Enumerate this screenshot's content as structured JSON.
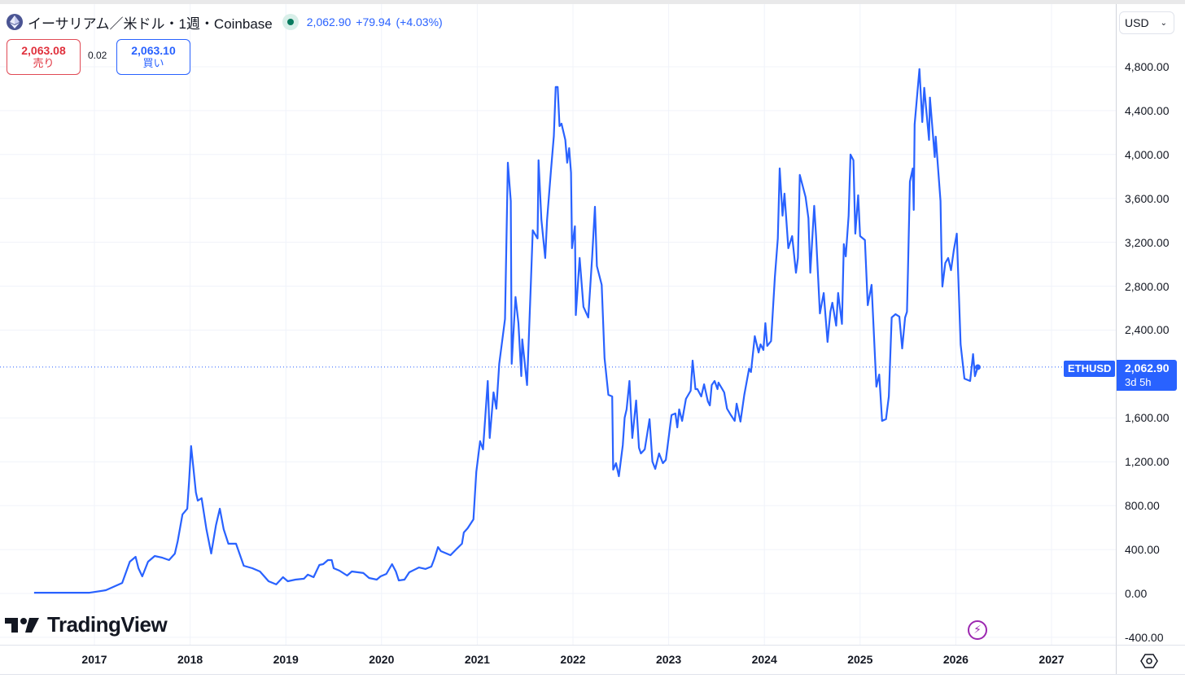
{
  "header": {
    "title": "イーサリアム／米ドル・1週・Coinbase",
    "last_price": "2,062.90",
    "change": "+79.94",
    "change_pct": "(+4.03%)",
    "sell_price": "2,063.08",
    "sell_label": "売り",
    "spread": "0.02",
    "buy_price": "2,063.10",
    "buy_label": "買い",
    "icons": {
      "symbol": "ethereum-icon",
      "status": "market-open-dot-icon"
    }
  },
  "currency_select": {
    "value": "USD"
  },
  "price_tag": {
    "symbol": "ETHUSD",
    "value": "2,062.90",
    "countdown": "3d 5h"
  },
  "logo": {
    "text": "TradingView"
  },
  "colors": {
    "line": "#2962ff",
    "sell": "#e0303c",
    "buy": "#2962ff",
    "accent_purple": "#9c27b0",
    "live_dot": "#087a5e"
  },
  "chart_data": {
    "type": "line",
    "title": "イーサリアム／米ドル・1週・Coinbase",
    "xlabel": "",
    "ylabel": "USD",
    "series": [
      {
        "name": "ETHUSD",
        "color": "#2962ff"
      }
    ],
    "x_ticks": [
      "2017",
      "2018",
      "2019",
      "2020",
      "2021",
      "2022",
      "2023",
      "2024",
      "2025",
      "2026",
      "2027"
    ],
    "y_ticks": [
      "4,800.00",
      "4,400.00",
      "4,000.00",
      "3,600.00",
      "3,200.00",
      "2,800.00",
      "2,400.00",
      "1,600.00",
      "1,200.00",
      "800.00",
      "400.00",
      "0.00",
      "-400.00"
    ],
    "y_tick_values": [
      4800,
      4400,
      4000,
      3600,
      3200,
      2800,
      2400,
      1600,
      1200,
      800,
      400,
      0,
      -400
    ],
    "ylim": [
      -450,
      5150
    ],
    "xlim": [
      2016.05,
      2027.66
    ],
    "grid": true,
    "legend_position": "none",
    "current_price_line": 2062.9,
    "points": [
      [
        2016.37,
        7
      ],
      [
        2016.95,
        7
      ],
      [
        2017.12,
        30
      ],
      [
        2017.29,
        96
      ],
      [
        2017.37,
        289
      ],
      [
        2017.43,
        334
      ],
      [
        2017.46,
        230
      ],
      [
        2017.5,
        156
      ],
      [
        2017.56,
        289
      ],
      [
        2017.63,
        341
      ],
      [
        2017.71,
        326
      ],
      [
        2017.78,
        304
      ],
      [
        2017.84,
        363
      ],
      [
        2017.87,
        475
      ],
      [
        2017.92,
        720
      ],
      [
        2017.97,
        772
      ],
      [
        2017.99,
        1031
      ],
      [
        2018.01,
        1343
      ],
      [
        2018.03,
        1180
      ],
      [
        2018.06,
        920
      ],
      [
        2018.08,
        846
      ],
      [
        2018.12,
        868
      ],
      [
        2018.17,
        586
      ],
      [
        2018.22,
        364
      ],
      [
        2018.27,
        623
      ],
      [
        2018.31,
        772
      ],
      [
        2018.35,
        586
      ],
      [
        2018.4,
        453
      ],
      [
        2018.48,
        453
      ],
      [
        2018.56,
        252
      ],
      [
        2018.65,
        230
      ],
      [
        2018.73,
        200
      ],
      [
        2018.82,
        111
      ],
      [
        2018.9,
        82
      ],
      [
        2018.97,
        148
      ],
      [
        2019.02,
        111
      ],
      [
        2019.1,
        126
      ],
      [
        2019.19,
        134
      ],
      [
        2019.23,
        171
      ],
      [
        2019.29,
        148
      ],
      [
        2019.35,
        260
      ],
      [
        2019.39,
        267
      ],
      [
        2019.44,
        304
      ],
      [
        2019.48,
        304
      ],
      [
        2019.5,
        230
      ],
      [
        2019.56,
        208
      ],
      [
        2019.64,
        163
      ],
      [
        2019.69,
        200
      ],
      [
        2019.81,
        186
      ],
      [
        2019.87,
        141
      ],
      [
        2019.95,
        126
      ],
      [
        2019.99,
        156
      ],
      [
        2020.05,
        178
      ],
      [
        2020.11,
        267
      ],
      [
        2020.15,
        200
      ],
      [
        2020.18,
        119
      ],
      [
        2020.24,
        126
      ],
      [
        2020.29,
        193
      ],
      [
        2020.39,
        237
      ],
      [
        2020.46,
        223
      ],
      [
        2020.52,
        245
      ],
      [
        2020.55,
        312
      ],
      [
        2020.59,
        423
      ],
      [
        2020.62,
        386
      ],
      [
        2020.72,
        349
      ],
      [
        2020.78,
        401
      ],
      [
        2020.84,
        453
      ],
      [
        2020.86,
        556
      ],
      [
        2020.9,
        594
      ],
      [
        2020.96,
        675
      ],
      [
        2020.99,
        1106
      ],
      [
        2021.03,
        1387
      ],
      [
        2021.06,
        1313
      ],
      [
        2021.11,
        1936
      ],
      [
        2021.13,
        1417
      ],
      [
        2021.17,
        1832
      ],
      [
        2021.2,
        1684
      ],
      [
        2021.23,
        2093
      ],
      [
        2021.26,
        2300
      ],
      [
        2021.29,
        2501
      ],
      [
        2021.32,
        3925
      ],
      [
        2021.35,
        3576
      ],
      [
        2021.36,
        2093
      ],
      [
        2021.4,
        2701
      ],
      [
        2021.43,
        2463
      ],
      [
        2021.46,
        1981
      ],
      [
        2021.47,
        2315
      ],
      [
        2021.52,
        1899
      ],
      [
        2021.56,
        2834
      ],
      [
        2021.58,
        3309
      ],
      [
        2021.63,
        3235
      ],
      [
        2021.64,
        3947
      ],
      [
        2021.67,
        3406
      ],
      [
        2021.71,
        3057
      ],
      [
        2021.73,
        3406
      ],
      [
        2021.77,
        3858
      ],
      [
        2021.8,
        4169
      ],
      [
        2021.82,
        4615
      ],
      [
        2021.84,
        4615
      ],
      [
        2021.86,
        4259
      ],
      [
        2021.88,
        4281
      ],
      [
        2021.92,
        4133
      ],
      [
        2021.94,
        3925
      ],
      [
        2021.96,
        4058
      ],
      [
        2021.98,
        3836
      ],
      [
        2021.99,
        3146
      ],
      [
        2022.02,
        3346
      ],
      [
        2022.03,
        2537
      ],
      [
        2022.07,
        3057
      ],
      [
        2022.11,
        2612
      ],
      [
        2022.16,
        2515
      ],
      [
        2022.2,
        3057
      ],
      [
        2022.23,
        3524
      ],
      [
        2022.25,
        2983
      ],
      [
        2022.3,
        2812
      ],
      [
        2022.33,
        2145
      ],
      [
        2022.37,
        1810
      ],
      [
        2022.41,
        1795
      ],
      [
        2022.42,
        1128
      ],
      [
        2022.45,
        1187
      ],
      [
        2022.48,
        1068
      ],
      [
        2022.52,
        1350
      ],
      [
        2022.54,
        1602
      ],
      [
        2022.56,
        1677
      ],
      [
        2022.59,
        1936
      ],
      [
        2022.62,
        1417
      ],
      [
        2022.66,
        1758
      ],
      [
        2022.69,
        1328
      ],
      [
        2022.71,
        1276
      ],
      [
        2022.75,
        1313
      ],
      [
        2022.8,
        1588
      ],
      [
        2022.83,
        1202
      ],
      [
        2022.86,
        1135
      ],
      [
        2022.9,
        1276
      ],
      [
        2022.94,
        1187
      ],
      [
        2022.97,
        1217
      ],
      [
        2023.03,
        1625
      ],
      [
        2023.07,
        1640
      ],
      [
        2023.09,
        1513
      ],
      [
        2023.11,
        1677
      ],
      [
        2023.14,
        1573
      ],
      [
        2023.18,
        1773
      ],
      [
        2023.23,
        1847
      ],
      [
        2023.25,
        2122
      ],
      [
        2023.28,
        1862
      ],
      [
        2023.3,
        1862
      ],
      [
        2023.34,
        1795
      ],
      [
        2023.37,
        1906
      ],
      [
        2023.41,
        1750
      ],
      [
        2023.43,
        1714
      ],
      [
        2023.45,
        1899
      ],
      [
        2023.48,
        1936
      ],
      [
        2023.51,
        1862
      ],
      [
        2023.52,
        1921
      ],
      [
        2023.58,
        1832
      ],
      [
        2023.61,
        1684
      ],
      [
        2023.65,
        1625
      ],
      [
        2023.69,
        1573
      ],
      [
        2023.71,
        1729
      ],
      [
        2023.75,
        1566
      ],
      [
        2023.79,
        1810
      ],
      [
        2023.84,
        2048
      ],
      [
        2023.86,
        2018
      ],
      [
        2023.9,
        2344
      ],
      [
        2023.94,
        2196
      ],
      [
        2023.96,
        2270
      ],
      [
        2023.99,
        2219
      ],
      [
        2024.01,
        2463
      ],
      [
        2024.03,
        2256
      ],
      [
        2024.07,
        2300
      ],
      [
        2024.11,
        2886
      ],
      [
        2024.14,
        3235
      ],
      [
        2024.16,
        3873
      ],
      [
        2024.19,
        3443
      ],
      [
        2024.21,
        3643
      ],
      [
        2024.25,
        3146
      ],
      [
        2024.29,
        3257
      ],
      [
        2024.33,
        2923
      ],
      [
        2024.35,
        3057
      ],
      [
        2024.37,
        3814
      ],
      [
        2024.43,
        3613
      ],
      [
        2024.46,
        3420
      ],
      [
        2024.48,
        2923
      ],
      [
        2024.52,
        3532
      ],
      [
        2024.54,
        3257
      ],
      [
        2024.58,
        2552
      ],
      [
        2024.62,
        2738
      ],
      [
        2024.66,
        2292
      ],
      [
        2024.69,
        2567
      ],
      [
        2024.71,
        2649
      ],
      [
        2024.75,
        2441
      ],
      [
        2024.77,
        2738
      ],
      [
        2024.81,
        2456
      ],
      [
        2024.83,
        3183
      ],
      [
        2024.85,
        3072
      ],
      [
        2024.88,
        3443
      ],
      [
        2024.9,
        3999
      ],
      [
        2024.93,
        3947
      ],
      [
        2024.95,
        3279
      ],
      [
        2024.98,
        3628
      ],
      [
        2025.0,
        3257
      ],
      [
        2025.05,
        3220
      ],
      [
        2025.08,
        2627
      ],
      [
        2025.12,
        2812
      ],
      [
        2025.17,
        1884
      ],
      [
        2025.2,
        1995
      ],
      [
        2025.23,
        1573
      ],
      [
        2025.27,
        1588
      ],
      [
        2025.3,
        1795
      ],
      [
        2025.33,
        2515
      ],
      [
        2025.37,
        2545
      ],
      [
        2025.41,
        2523
      ],
      [
        2025.44,
        2233
      ],
      [
        2025.47,
        2515
      ],
      [
        2025.49,
        2567
      ],
      [
        2025.5,
        2938
      ],
      [
        2025.52,
        3754
      ],
      [
        2025.55,
        3873
      ],
      [
        2025.56,
        3495
      ],
      [
        2025.57,
        4274
      ],
      [
        2025.62,
        4778
      ],
      [
        2025.65,
        4296
      ],
      [
        2025.67,
        4608
      ],
      [
        2025.72,
        4133
      ],
      [
        2025.73,
        4519
      ],
      [
        2025.78,
        3977
      ],
      [
        2025.79,
        4163
      ],
      [
        2025.84,
        3576
      ],
      [
        2025.85,
        3086
      ],
      [
        2025.86,
        2797
      ],
      [
        2025.89,
        3012
      ],
      [
        2025.92,
        3057
      ],
      [
        2025.95,
        2946
      ],
      [
        2025.98,
        3131
      ],
      [
        2026.01,
        3279
      ],
      [
        2026.05,
        2270
      ],
      [
        2026.09,
        1958
      ],
      [
        2026.15,
        1936
      ],
      [
        2026.18,
        2181
      ],
      [
        2026.2,
        1980
      ],
      [
        2026.23,
        2062
      ]
    ]
  }
}
